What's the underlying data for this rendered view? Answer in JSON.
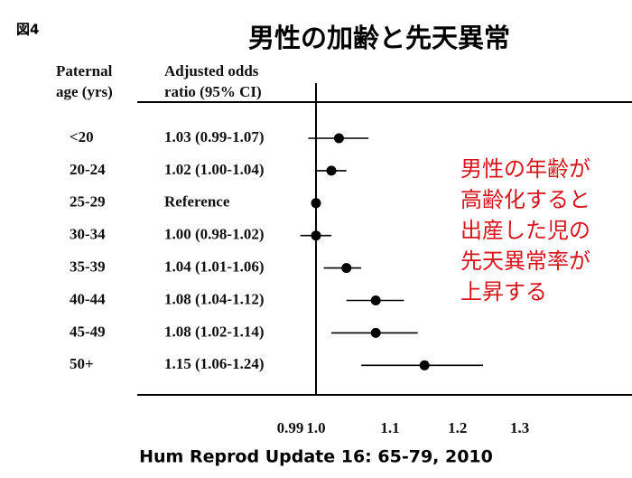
{
  "chart_data": {
    "type": "forest",
    "figure_label": "図4",
    "title": "男性の加齢と先天異常",
    "category_header": [
      "Paternal",
      "age (yrs)"
    ],
    "value_header": [
      "Adjusted odds",
      "ratio (95% CI)"
    ],
    "categories": [
      "<20",
      "20-24",
      "25-29",
      "30-34",
      "35-39",
      "40-44",
      "45-49",
      "50+"
    ],
    "values": [
      1.03,
      1.02,
      1,
      1.0,
      1.04,
      1.08,
      1.08,
      1.15
    ],
    "lower": [
      0.99,
      1.0,
      null,
      0.98,
      1.01,
      1.04,
      1.02,
      1.06
    ],
    "upper": [
      1.07,
      1.04,
      null,
      1.02,
      1.06,
      1.12,
      1.14,
      1.24
    ],
    "value_labels": [
      "1.03 (0.99-1.07)",
      "1.02 (1.00-1.04)",
      "Reference",
      "1.00 (0.98-1.02)",
      "1.04 (1.01-1.06)",
      "1.08 (1.04-1.12)",
      "1.08 (1.02-1.14)",
      "1.15 (1.06-1.24)"
    ],
    "color": "#000000",
    "xscale": "log",
    "xlim": [
      0.9,
      1.4
    ],
    "xticks": [
      0.99,
      {
        "value": 1,
        "label": "1.0"
      },
      1.1,
      1.2,
      1.3
    ],
    "reference_line": 1,
    "annotation": [
      "男性の年齢が",
      "高齢化すると",
      "出産した児の",
      "先天異常率が",
      "上昇する"
    ],
    "source": "Hum Reprod Update 16: 65-79, 2010"
  }
}
